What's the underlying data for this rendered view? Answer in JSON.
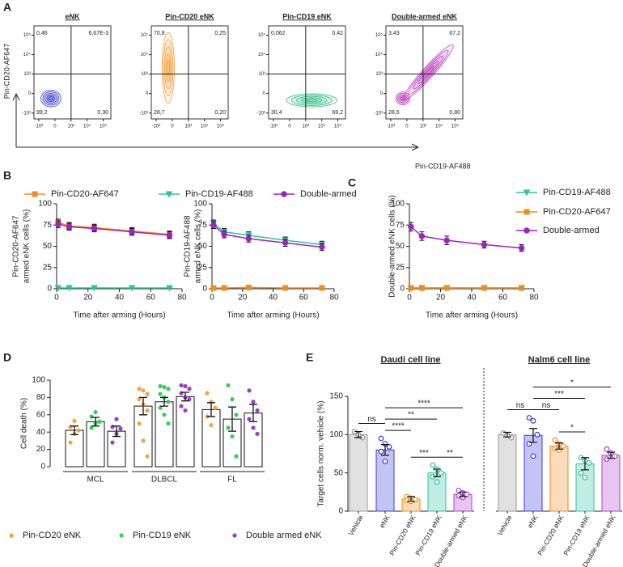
{
  "chart_data": [
    {
      "type": "contour",
      "panel": "A",
      "xlabel": "Pin-CD19-AF488",
      "ylabel": "Pin-CD20-AF647",
      "xlim": [
        -2000,
        300000
      ],
      "ylim": [
        -2000,
        300000
      ],
      "xticks": [
        {
          "value": -1000,
          "label": "-10³"
        },
        0,
        {
          "value": 1000,
          "label": "10³"
        },
        {
          "value": 10000,
          "label": "10⁴"
        },
        {
          "value": 100000,
          "label": "10⁵"
        }
      ],
      "yticks": [
        {
          "value": -1000,
          "label": "-10³"
        },
        0,
        {
          "value": 1000,
          "label": "10³"
        },
        {
          "value": 10000,
          "label": "10⁴"
        },
        {
          "value": 100000,
          "label": "10⁵"
        }
      ],
      "plots": [
        {
          "title": "eNK",
          "color": "#3a3fd0",
          "quadrants": [
            "0,46",
            "6,67E-3",
            "99,2",
            "0,30"
          ]
        },
        {
          "title": "Pin-CD20 eNK",
          "color": "#f0a040",
          "quadrants": [
            "70,8",
            "0,25",
            "28,7",
            "0,20"
          ]
        },
        {
          "title": "Pin-CD19 eNK",
          "color": "#3cc08a",
          "quadrants": [
            "0,062",
            "0,42",
            "30,4",
            "69,2"
          ]
        },
        {
          "title": "Double-armed eNK",
          "color": "#c040c0",
          "quadrants": [
            "3,43",
            "67,2",
            "28,6",
            "0,80"
          ]
        }
      ]
    },
    {
      "type": "line",
      "panel": "B",
      "legend": "top",
      "xlabel": "Time after arming (Hours)",
      "ylabels": [
        [
          "Pin-CD20-AF647",
          "armed eNK cells (%)"
        ],
        [
          "Pin-CD19-AF488",
          "armed eNK cells (%)"
        ]
      ],
      "x": [
        1,
        8,
        24,
        48,
        72
      ],
      "xlim": [
        0,
        80
      ],
      "xticks": [
        0,
        20,
        40,
        60,
        80
      ],
      "ylim": [
        0,
        100
      ],
      "yticks": [
        0,
        25,
        50,
        75,
        100
      ],
      "series": [
        {
          "name": "Pin-CD20-AF647",
          "color": "#f08c1e",
          "marker": "square",
          "values": [
            [
              78,
              74,
              72,
              68,
              64
            ],
            [
              1,
              1,
              1.5,
              1,
              1
            ]
          ],
          "errors": [
            [
              4,
              4,
              4,
              4,
              4
            ],
            [
              0.5,
              0.5,
              0.5,
              0.5,
              0.5
            ]
          ]
        },
        {
          "name": "Pin-CD19-AF488",
          "color": "#2ec39a",
          "marker": "triangle-down",
          "values": [
            [
              1,
              1,
              1,
              1,
              1
            ],
            [
              77,
              67,
              63,
              57,
              52
            ]
          ],
          "errors": [
            [
              0.5,
              0.5,
              0.5,
              0.5,
              0.5
            ],
            [
              4,
              4,
              4,
              4,
              4
            ]
          ]
        },
        {
          "name": "Double-armed",
          "color": "#a020c0",
          "marker": "circle",
          "values": [
            [
              76,
              73,
              71,
              67,
              63
            ],
            [
              75,
              64,
              59,
              54,
              49
            ]
          ],
          "errors": [
            [
              4,
              4,
              4,
              4,
              4
            ],
            [
              4,
              4,
              4,
              4,
              4
            ]
          ]
        }
      ]
    },
    {
      "type": "line",
      "panel": "C",
      "legend": "right",
      "xlabel": "Time after arming (Hours)",
      "ylabel": "Double-armed eNK cells (%)",
      "x": [
        1,
        8,
        24,
        48,
        72
      ],
      "xlim": [
        0,
        80
      ],
      "xticks": [
        0,
        20,
        40,
        60,
        80
      ],
      "ylim": [
        0,
        100
      ],
      "yticks": [
        0,
        25,
        50,
        75,
        100
      ],
      "series": [
        {
          "name": "Pin-CD19-AF488",
          "color": "#2ec39a",
          "marker": "triangle-down",
          "values": [
            1,
            1,
            1,
            1,
            1
          ],
          "errors": [
            0.5,
            0.5,
            0.5,
            0.5,
            0.5
          ]
        },
        {
          "name": "Pin-CD20-AF647",
          "color": "#f08c1e",
          "marker": "square",
          "values": [
            1,
            1,
            1,
            1,
            1
          ],
          "errors": [
            0.5,
            0.5,
            0.5,
            0.5,
            0.5
          ]
        },
        {
          "name": "Double-armed",
          "color": "#a020c0",
          "marker": "circle",
          "values": [
            73,
            62,
            57,
            52,
            48
          ],
          "errors": [
            5,
            5,
            5,
            4,
            4
          ]
        }
      ]
    },
    {
      "type": "bar",
      "panel": "D",
      "legend": "bottom",
      "ylabel": "Cell death (%)",
      "ylim": [
        0,
        100
      ],
      "yticks": [
        0,
        20,
        40,
        60,
        80,
        100
      ],
      "categories": [
        "MCL",
        "DLBCL",
        "FL"
      ],
      "series": [
        {
          "name": "Pin-CD20 eNK",
          "color": "#f5a04a",
          "values": [
            42,
            70,
            66
          ],
          "errors": [
            5,
            10,
            8
          ],
          "points": [
            [
              28,
              38,
              42,
              46,
              53
            ],
            [
              90,
              88,
              84,
              78,
              72,
              65,
              50,
              30,
              12
            ],
            [
              85,
              75,
              68,
              58,
              48
            ]
          ]
        },
        {
          "name": "Pin-CD19 eNK",
          "color": "#3ccc5a",
          "values": [
            52,
            75,
            55
          ],
          "errors": [
            5,
            5,
            14
          ],
          "points": [
            [
              45,
              50,
              52,
              58,
              63
            ],
            [
              93,
              92,
              90,
              84,
              80,
              75,
              68,
              60,
              50
            ],
            [
              94,
              78,
              60,
              45,
              35,
              12
            ]
          ]
        },
        {
          "name": "Double armed eNK",
          "color": "#9a40c8",
          "values": [
            41,
            81,
            62
          ],
          "errors": [
            6,
            5,
            10
          ],
          "points": [
            [
              28,
              38,
              44,
              46,
              55
            ],
            [
              94,
              93,
              90,
              85,
              80,
              78,
              70,
              65
            ],
            [
              88,
              75,
              65,
              55,
              45,
              38
            ]
          ]
        }
      ]
    },
    {
      "type": "column",
      "panel": "E",
      "ylabel": "Target cells norm. vehicle (%)",
      "ylim": [
        0,
        150
      ],
      "yticks": [
        0,
        50,
        100,
        150
      ],
      "categories": [
        "Vehicle",
        "eNK",
        "Pin-CD20 eNK",
        "Pin-CD19 eNK",
        "Double-armed eNK"
      ],
      "colors": [
        "#9a9a9a",
        "#3b3bdc",
        "#f08c1e",
        "#2ec39a",
        "#b040d0"
      ],
      "groups": [
        {
          "title": "Daudi cell line",
          "values": [
            100,
            80,
            16,
            50,
            22
          ],
          "errors": [
            4,
            7,
            3,
            5,
            3
          ],
          "points": [
            [
              104,
              100,
              96
            ],
            [
              95,
              88,
              84,
              78,
              65
            ],
            [
              19,
              17,
              15,
              14,
              13
            ],
            [
              60,
              55,
              50,
              45,
              38
            ],
            [
              27,
              24,
              22,
              20,
              18
            ]
          ],
          "comparisons": [
            {
              "between": [
                "Vehicle",
                "eNK"
              ],
              "label": "ns"
            },
            {
              "between": [
                "Pin-CD20 eNK",
                "Pin-CD19 eNK"
              ],
              "label": "***"
            },
            {
              "between": [
                "Pin-CD19 eNK",
                "Double-armed eNK"
              ],
              "label": "**"
            },
            {
              "between": [
                "eNK",
                "Pin-CD20 eNK"
              ],
              "label": "****"
            },
            {
              "between": [
                "eNK",
                "Pin-CD19 eNK"
              ],
              "label": "**"
            },
            {
              "between": [
                "eNK",
                "Double-armed eNK"
              ],
              "label": "****"
            }
          ]
        },
        {
          "title": "Nalm6 cell line",
          "values": [
            100,
            99,
            85,
            62,
            73
          ],
          "errors": [
            3,
            9,
            4,
            8,
            4
          ],
          "points": [
            [
              102,
              99,
              96
            ],
            [
              122,
              118,
              100,
              88,
              72
            ],
            [
              93,
              88,
              85,
              82,
              80
            ],
            [
              70,
              66,
              63,
              50,
              44
            ],
            [
              81,
              76,
              72,
              68
            ]
          ],
          "comparisons": [
            {
              "between": [
                "Vehicle",
                "eNK"
              ],
              "label": "ns"
            },
            {
              "between": [
                "Pin-CD20 eNK",
                "Pin-CD19 eNK"
              ],
              "label": "*"
            },
            {
              "between": [
                "eNK",
                "Pin-CD20 eNK"
              ],
              "label": "ns"
            },
            {
              "between": [
                "eNK",
                "Pin-CD19 eNK"
              ],
              "label": "***"
            },
            {
              "between": [
                "eNK",
                "Double-armed eNK"
              ],
              "label": "*"
            }
          ]
        }
      ]
    }
  ]
}
